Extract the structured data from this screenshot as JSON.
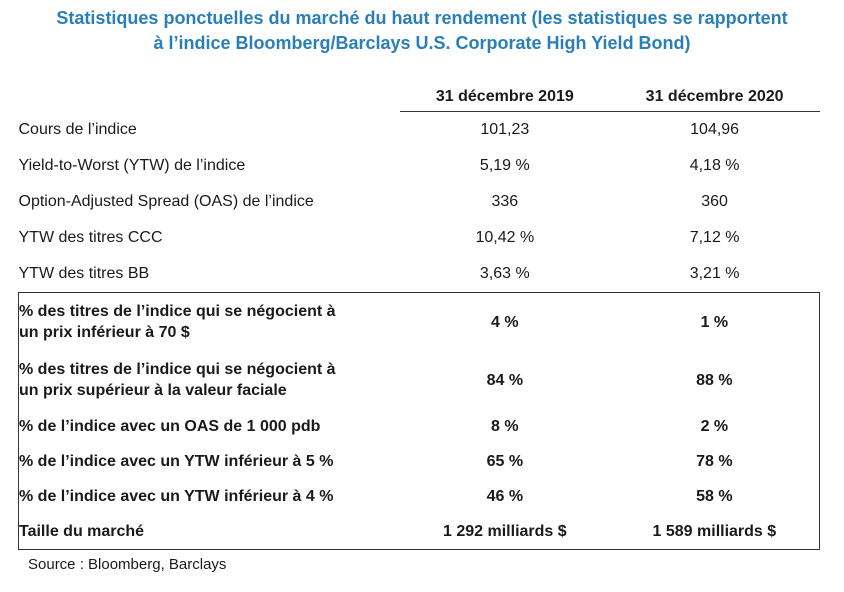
{
  "title": {
    "line1": "Statistiques ponctuelles du marché du haut rendement (les statistiques se rapportent",
    "line2": "à l’indice Bloomberg/Barclays U.S. Corporate High Yield Bond)"
  },
  "columns": [
    "31 décembre 2019",
    "31 décembre 2020"
  ],
  "rows": [
    {
      "label": "Cours de l’indice",
      "v2019": "101,23",
      "v2020": "104,96"
    },
    {
      "label": "Yield-to-Worst (YTW) de l’indice",
      "v2019": "5,19 %",
      "v2020": "4,18 %"
    },
    {
      "label": "Option-Adjusted Spread (OAS) de l’indice",
      "v2019": "336",
      "v2020": "360"
    },
    {
      "label": "YTW des titres CCC",
      "v2019": "10,42 %",
      "v2020": "7,12 %"
    },
    {
      "label": "YTW des titres BB",
      "v2019": "3,63 %",
      "v2020": "3,21 %"
    }
  ],
  "boxed_rows": [
    {
      "label_l1": "% des titres de l’indice qui se négocient à",
      "label_l2": "un prix inférieur à 70 $",
      "v2019": "4 %",
      "v2020": "1 %"
    },
    {
      "label_l1": "% des titres de l’indice qui se négocient à",
      "label_l2": "un prix supérieur à la valeur faciale",
      "v2019": "84 %",
      "v2020": "88 %"
    },
    {
      "label": "% de l’indice avec un OAS de 1 000 pdb",
      "v2019": "8 %",
      "v2020": "2 %"
    },
    {
      "label": "% de l’indice avec un YTW inférieur à 5 %",
      "v2019": "65 %",
      "v2020": "78 %"
    },
    {
      "label": "% de l’indice avec un YTW inférieur à 4 %",
      "v2019": "46 %",
      "v2020": "58 %"
    },
    {
      "label": "Taille du marché",
      "v2019": "1 292 milliards $",
      "v2020": "1 589 milliards $"
    }
  ],
  "source": "Source : Bloomberg, Barclays",
  "colors": {
    "title": "#2a7fb8",
    "text": "#1a1a1a"
  }
}
